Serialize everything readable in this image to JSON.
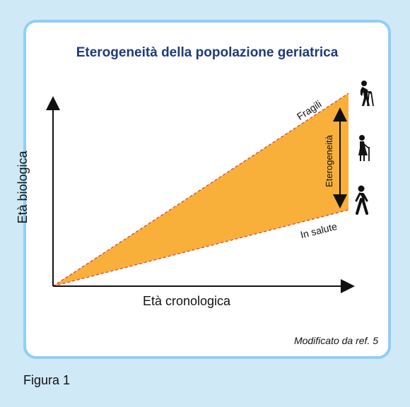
{
  "figure": {
    "title": "Eterogeneità della popolazione geriatrica",
    "y_axis_label": "Età biologica",
    "x_axis_label": "Età cronologica",
    "upper_line_label": "Fragili",
    "lower_line_label": "In salute",
    "range_label": "Eterogeneità",
    "source_note": "Modificato da ref. 5",
    "caption_label": "Figura 1",
    "fill_color": "#f9b03a",
    "title_color": "#1f3a7a",
    "border_color": "#8fd0f2",
    "icons": [
      "walker-elder-icon",
      "cane-elder-icon",
      "walking-person-icon"
    ]
  }
}
